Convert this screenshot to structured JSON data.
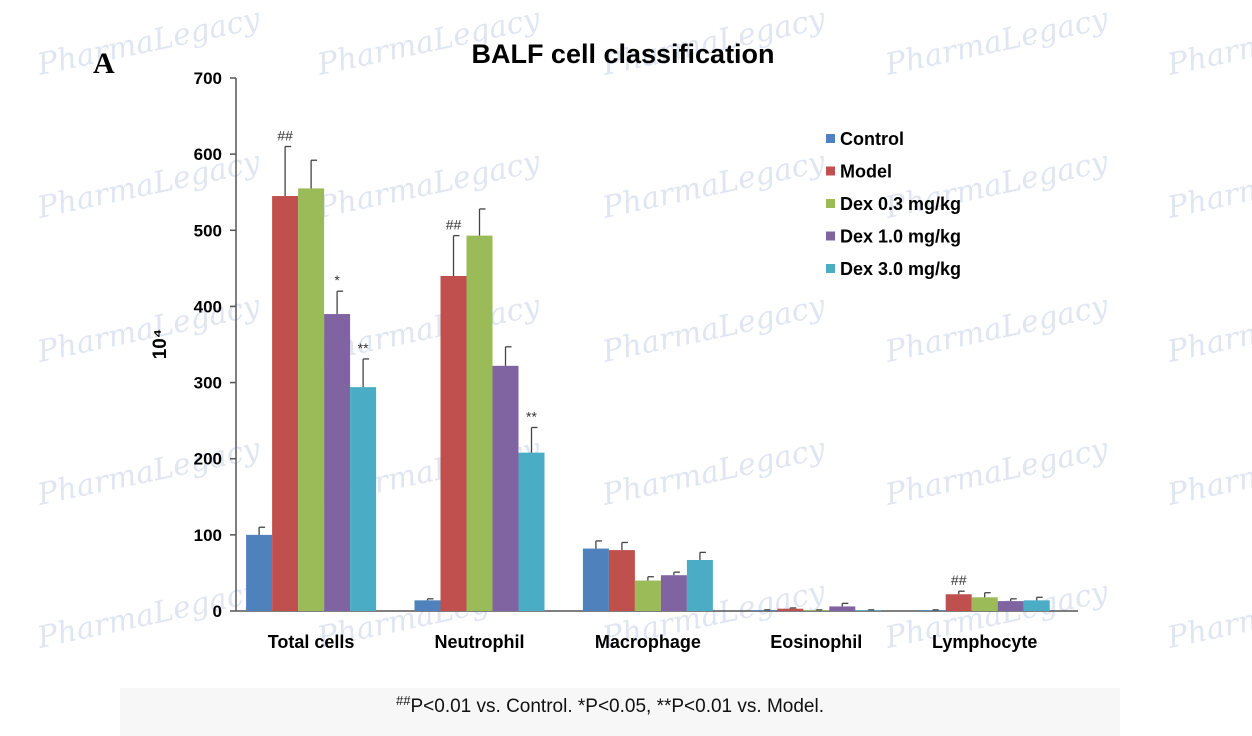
{
  "figure": {
    "panel_label": "A",
    "footnote": {
      "sup": "##",
      "text": "P<0.01 vs. Control. *P<0.05, **P<0.01 vs. Model."
    },
    "watermark": "PharmaLegacy"
  },
  "chart_data": {
    "type": "bar",
    "title": "BALF cell classification",
    "ylabel": "10⁴",
    "xlabel": "",
    "ylim": [
      0,
      700
    ],
    "yticks": [
      0,
      100,
      200,
      300,
      400,
      500,
      600,
      700
    ],
    "grid": false,
    "legend_position": "top-right",
    "categories": [
      "Total cells",
      "Neutrophil",
      "Macrophage",
      "Eosinophil",
      "Lymphocyte"
    ],
    "series": [
      {
        "name": "Control",
        "color": "#4f81bd",
        "values": [
          100,
          14,
          82,
          1,
          1
        ],
        "errors": [
          10,
          2,
          10,
          0.5,
          0.5
        ],
        "significance": [
          "",
          "",
          "",
          "",
          ""
        ]
      },
      {
        "name": "Model",
        "color": "#c0504d",
        "values": [
          545,
          440,
          80,
          3,
          22
        ],
        "errors": [
          65,
          53,
          10,
          1,
          4
        ],
        "significance": [
          "##",
          "##",
          "",
          "",
          "##"
        ]
      },
      {
        "name": "Dex 0.3 mg/kg",
        "color": "#9bbb59",
        "values": [
          555,
          493,
          40,
          1,
          18
        ],
        "errors": [
          37,
          35,
          5,
          0.5,
          6
        ],
        "significance": [
          "",
          "",
          "",
          "",
          ""
        ]
      },
      {
        "name": "Dex 1.0 mg/kg",
        "color": "#8064a2",
        "values": [
          390,
          322,
          47,
          6,
          13
        ],
        "errors": [
          30,
          25,
          4,
          4,
          3
        ],
        "significance": [
          "*",
          "",
          "",
          "",
          ""
        ]
      },
      {
        "name": "Dex 3.0 mg/kg",
        "color": "#4bacc6",
        "values": [
          294,
          208,
          67,
          1,
          14
        ],
        "errors": [
          37,
          33,
          10,
          0.5,
          4
        ],
        "significance": [
          "**",
          "**",
          "",
          "",
          ""
        ]
      }
    ]
  }
}
